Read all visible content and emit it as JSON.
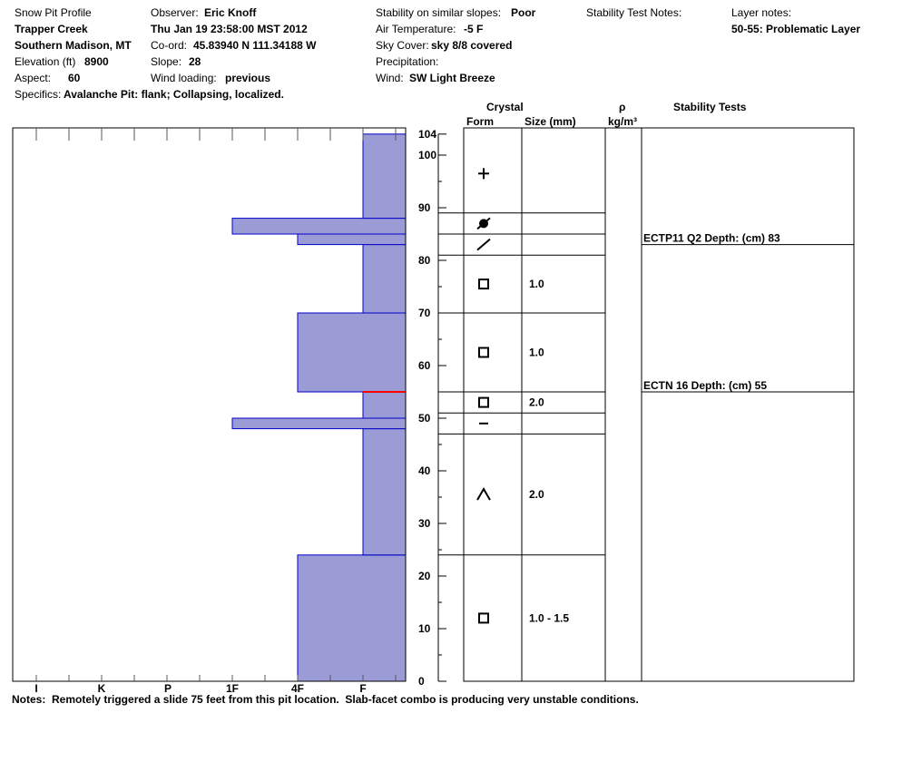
{
  "header": {
    "title": "Snow Pit Profile",
    "location": "Trapper Creek",
    "range": "Southern Madison, MT",
    "elevation_label": "Elevation (ft)",
    "elevation_value": "8900",
    "aspect_label": "Aspect:",
    "aspect_value": "60",
    "specifics_label": "Specifics:",
    "specifics_value": "Avalanche Pit: flank; Collapsing, localized.",
    "observer_label": "Observer:",
    "observer_value": "Eric Knoff",
    "datetime": "Thu Jan 19 23:58:00 MST 2012",
    "coord_label": "Co-ord:",
    "coord_value": "45.83940 N 111.34188 W",
    "slope_label": "Slope:",
    "slope_value": "28",
    "wind_loading_label": "Wind loading:",
    "wind_loading_value": "previous",
    "stability_label": "Stability on similar slopes:",
    "stability_value": "Poor",
    "air_temp_label": "Air Temperature:",
    "air_temp_value": "-5 F",
    "sky_label": "Sky Cover:",
    "sky_value": "sky 8/8 covered",
    "precip_label": "Precipitation:",
    "wind_label": "Wind:",
    "wind_value": "SW Light Breeze",
    "stability_notes_label": "Stability Test Notes:",
    "layer_notes_label": "Layer notes:",
    "layer_notes_value": "50-55: Problematic Layer"
  },
  "columns": {
    "crystal": "Crystal",
    "form": "Form",
    "size": "Size (mm)",
    "rho": "ρ",
    "density_unit": "kg/m³",
    "stability_tests": "Stability Tests"
  },
  "notes": "Notes:  Remotely triggered a slide 75 feet from this pit location.  Slab-facet combo is producing very unstable conditions.",
  "colors": {
    "layer_fill": "#9b9bd6",
    "layer_edge": "#0000c8",
    "weak_layer": "#ff0000"
  },
  "chart_data": {
    "type": "bar",
    "title": "",
    "orientation": "horizontal",
    "y_axis": {
      "label": "",
      "min": 0,
      "max": 105,
      "ticks": [
        0,
        10,
        20,
        30,
        40,
        50,
        60,
        70,
        80,
        90,
        100,
        104
      ]
    },
    "x_axis": {
      "categories": [
        "I",
        "K",
        "P",
        "1F",
        "4F",
        "F"
      ],
      "reversed": true
    },
    "layers": [
      {
        "bottom": 0,
        "top": 24,
        "hardness": "4F"
      },
      {
        "bottom": 24,
        "top": 48,
        "hardness": "F"
      },
      {
        "bottom": 48,
        "top": 50,
        "hardness": "1F"
      },
      {
        "bottom": 50,
        "top": 55,
        "hardness": "F"
      },
      {
        "bottom": 55,
        "top": 70,
        "hardness": "4F"
      },
      {
        "bottom": 70,
        "top": 83,
        "hardness": "F"
      },
      {
        "bottom": 83,
        "top": 85,
        "hardness": "4F"
      },
      {
        "bottom": 85,
        "top": 88,
        "hardness": "1F"
      },
      {
        "bottom": 88,
        "top": 104,
        "hardness": "F"
      }
    ],
    "weak_layer_depth": 55,
    "crystals": [
      {
        "bottom": 0,
        "top": 24,
        "form": "facet",
        "size": "1.0 - 1.5"
      },
      {
        "bottom": 24,
        "top": 47,
        "form": "depth-hoar",
        "size": "2.0"
      },
      {
        "bottom": 47,
        "top": 51,
        "form": "rounding-facet",
        "size": ""
      },
      {
        "bottom": 51,
        "top": 55,
        "form": "facet",
        "size": "2.0"
      },
      {
        "bottom": 55,
        "top": 70,
        "form": "facet",
        "size": "1.0"
      },
      {
        "bottom": 70,
        "top": 81,
        "form": "facet",
        "size": "1.0"
      },
      {
        "bottom": 81,
        "top": 85,
        "form": "ice-crust",
        "size": ""
      },
      {
        "bottom": 85,
        "top": 89,
        "form": "surface-hoar",
        "size": ""
      },
      {
        "bottom": 89,
        "top": 104,
        "form": "new-snow",
        "size": ""
      }
    ],
    "stability_tests": [
      {
        "depth": 83,
        "label": "ECTP11 Q2 Depth: (cm) 83"
      },
      {
        "depth": 55,
        "label": "ECTN 16   Depth: (cm) 55"
      }
    ]
  }
}
